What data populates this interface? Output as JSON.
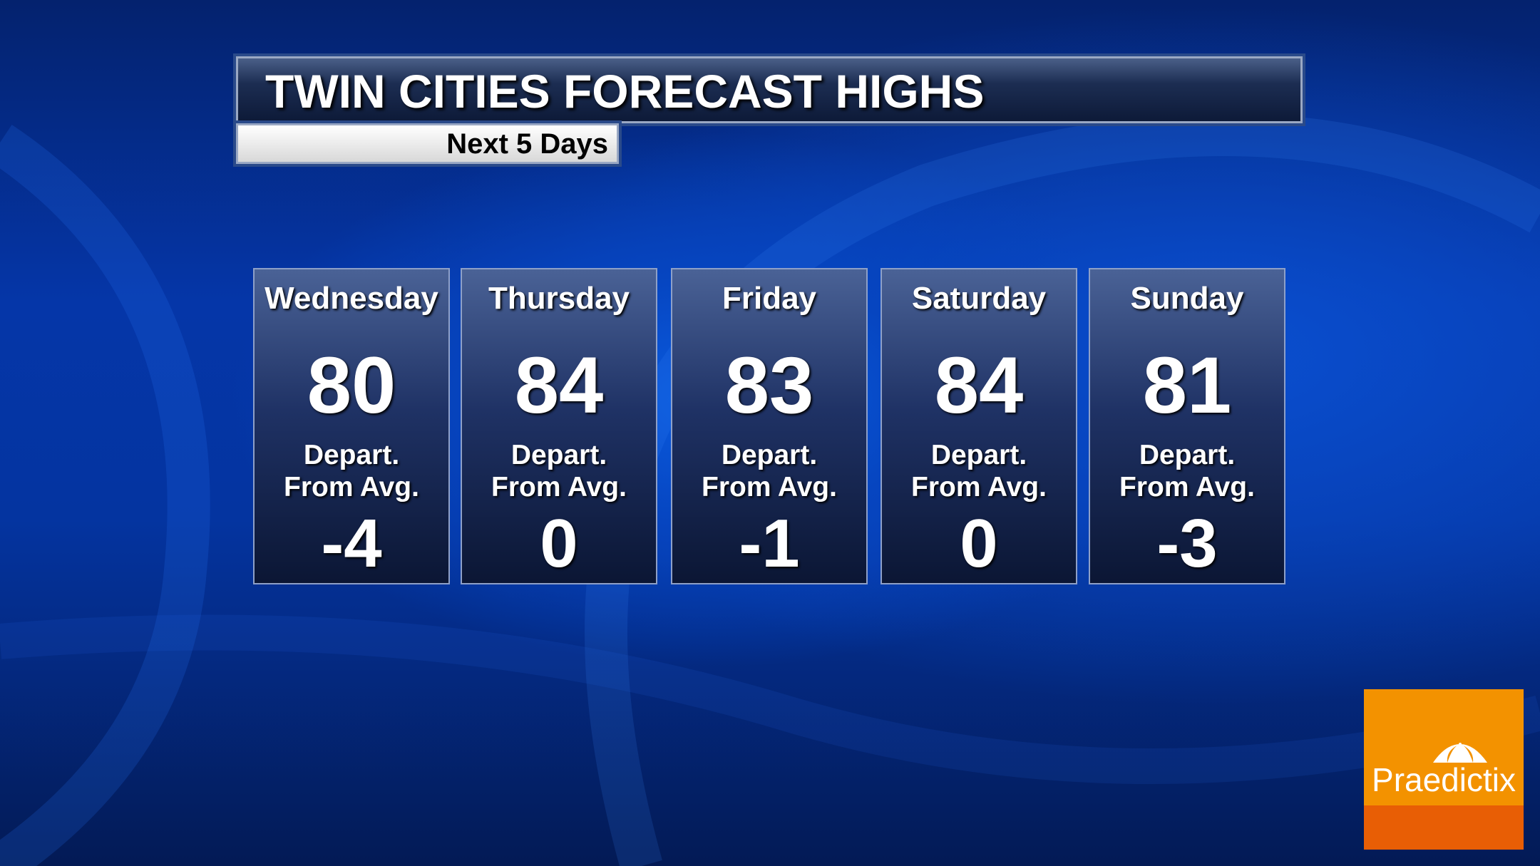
{
  "header": {
    "title": "TWIN CITIES FORECAST HIGHS",
    "subtitle": "Next 5 Days"
  },
  "days": [
    {
      "day": "Wednesday",
      "high": "80",
      "depart_label_1": "Depart.",
      "depart_label_2": "From Avg.",
      "departure": "-4"
    },
    {
      "day": "Thursday",
      "high": "84",
      "depart_label_1": "Depart.",
      "depart_label_2": "From Avg.",
      "departure": "0"
    },
    {
      "day": "Friday",
      "high": "83",
      "depart_label_1": "Depart.",
      "depart_label_2": "From Avg.",
      "departure": "-1"
    },
    {
      "day": "Saturday",
      "high": "84",
      "depart_label_1": "Depart.",
      "depart_label_2": "From Avg.",
      "departure": "0"
    },
    {
      "day": "Sunday",
      "high": "81",
      "depart_label_1": "Depart.",
      "depart_label_2": "From Avg.",
      "departure": "-3"
    }
  ],
  "logo": {
    "text": "Praedictix",
    "icon": "umbrella-icon",
    "colors": {
      "top": "#f39200",
      "bottom": "#e85e05"
    }
  }
}
